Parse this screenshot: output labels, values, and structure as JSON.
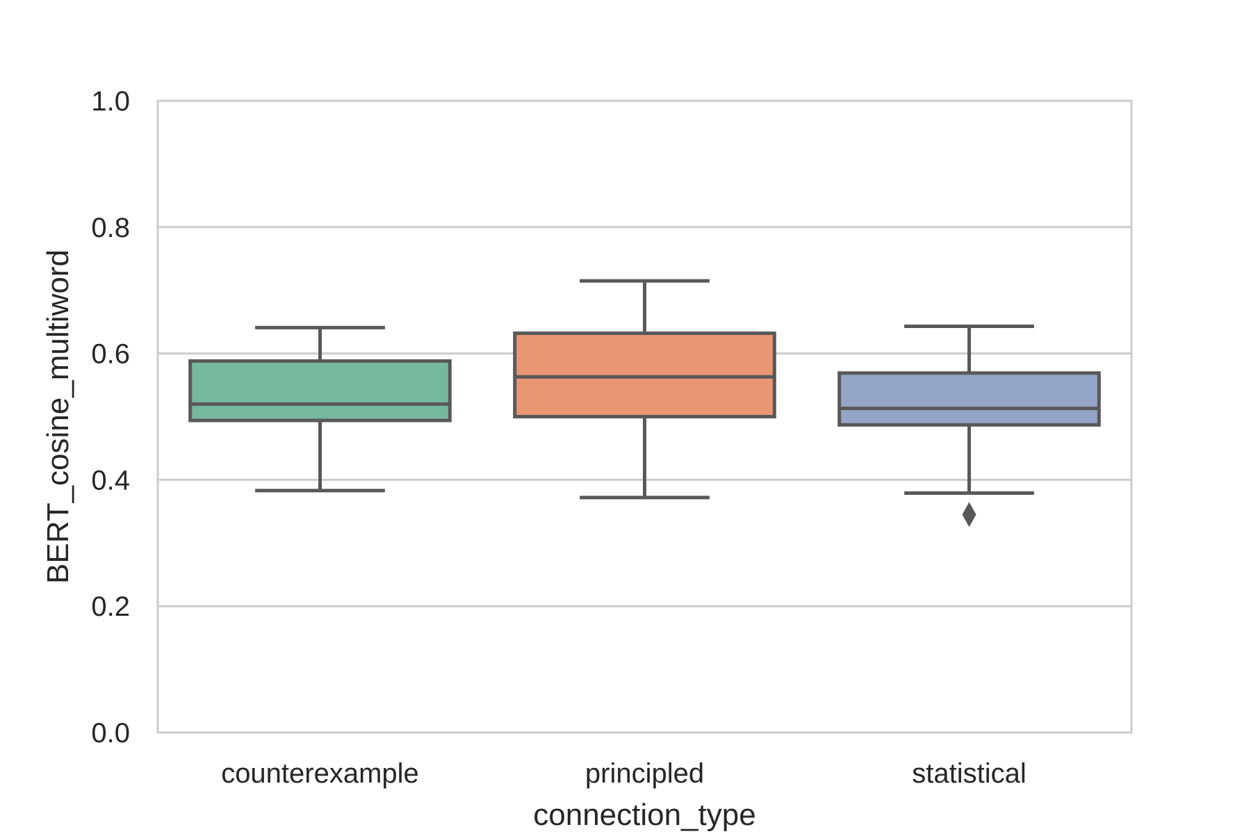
{
  "chart_data": {
    "type": "box",
    "xlabel": "connection_type",
    "ylabel": "BERT_cosine_multiword",
    "ylim": [
      0.0,
      1.0
    ],
    "yticks": [
      "0.0",
      "0.2",
      "0.4",
      "0.6",
      "0.8",
      "1.0"
    ],
    "grid": "horizontal",
    "categories": [
      "counterexample",
      "principled",
      "statistical"
    ],
    "boxes": [
      {
        "category": "counterexample",
        "whisker_low": 0.383,
        "q1": 0.494,
        "median": 0.52,
        "q3": 0.588,
        "whisker_high": 0.641,
        "outliers": [],
        "color": "#76b7a0"
      },
      {
        "category": "principled",
        "whisker_low": 0.372,
        "q1": 0.5,
        "median": 0.563,
        "q3": 0.632,
        "whisker_high": 0.715,
        "outliers": [],
        "color": "#e99675"
      },
      {
        "category": "statistical",
        "whisker_low": 0.379,
        "q1": 0.487,
        "median": 0.513,
        "q3": 0.569,
        "whisker_high": 0.643,
        "outliers": [
          0.345
        ],
        "color": "#95a5c7"
      }
    ],
    "colors": {
      "box_edge": "#595959",
      "grid": "#cccccc",
      "frame": "#cccccc",
      "text": "#262626"
    }
  }
}
